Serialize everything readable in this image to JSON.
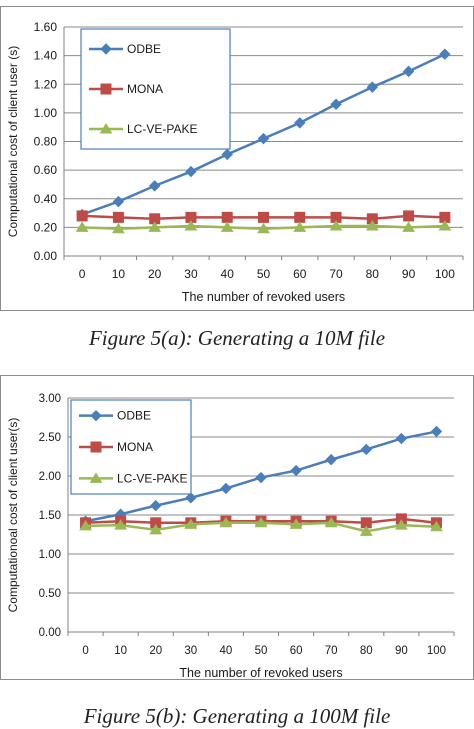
{
  "charts": [
    {
      "caption": "Figure 5(a): Generating a 10M file"
    },
    {
      "caption": "Figure 5(b): Generating a 100M file"
    }
  ],
  "chart_data": [
    {
      "type": "line",
      "xlabel": "The number of revoked users",
      "ylabel": "Computational cost of client user (s)",
      "x": [
        0,
        10,
        20,
        30,
        40,
        50,
        60,
        70,
        80,
        90,
        100
      ],
      "ylim": [
        0,
        1.6
      ],
      "yticks": [
        "0.00",
        "0.20",
        "0.40",
        "0.60",
        "0.80",
        "1.00",
        "1.20",
        "1.40",
        "1.60"
      ],
      "legend_position": "top-left",
      "series": [
        {
          "name": "ODBE",
          "color": "#4a7ebb",
          "marker": "diamond",
          "values": [
            0.29,
            0.38,
            0.49,
            0.59,
            0.71,
            0.82,
            0.93,
            1.06,
            1.18,
            1.29,
            1.41
          ]
        },
        {
          "name": "MONA",
          "color": "#be4b48",
          "marker": "square",
          "values": [
            0.28,
            0.27,
            0.26,
            0.27,
            0.27,
            0.27,
            0.27,
            0.27,
            0.26,
            0.28,
            0.27
          ]
        },
        {
          "name": "LC-VE-PAKE",
          "color": "#98b954",
          "marker": "triangle",
          "values": [
            0.2,
            0.19,
            0.2,
            0.21,
            0.2,
            0.19,
            0.2,
            0.21,
            0.21,
            0.2,
            0.21
          ]
        }
      ]
    },
    {
      "type": "line",
      "xlabel": "The number of revoked users",
      "ylabel": "Computationoal cost of client user(s)",
      "x": [
        0,
        10,
        20,
        30,
        40,
        50,
        60,
        70,
        80,
        90,
        100
      ],
      "ylim": [
        0,
        3.0
      ],
      "yticks": [
        "0.00",
        "0.50",
        "1.00",
        "1.50",
        "2.00",
        "2.50",
        "3.00"
      ],
      "legend_position": "top-left",
      "series": [
        {
          "name": "ODBE",
          "color": "#4a7ebb",
          "marker": "diamond",
          "values": [
            1.42,
            1.51,
            1.62,
            1.72,
            1.84,
            1.98,
            2.07,
            2.21,
            2.34,
            2.48,
            2.57
          ]
        },
        {
          "name": "MONA",
          "color": "#be4b48",
          "marker": "square",
          "values": [
            1.4,
            1.42,
            1.4,
            1.4,
            1.42,
            1.42,
            1.42,
            1.42,
            1.4,
            1.45,
            1.4
          ]
        },
        {
          "name": "LC-VE-PAKE",
          "color": "#98b954",
          "marker": "triangle",
          "values": [
            1.36,
            1.37,
            1.31,
            1.38,
            1.4,
            1.4,
            1.38,
            1.4,
            1.29,
            1.37,
            1.35
          ]
        }
      ]
    }
  ]
}
